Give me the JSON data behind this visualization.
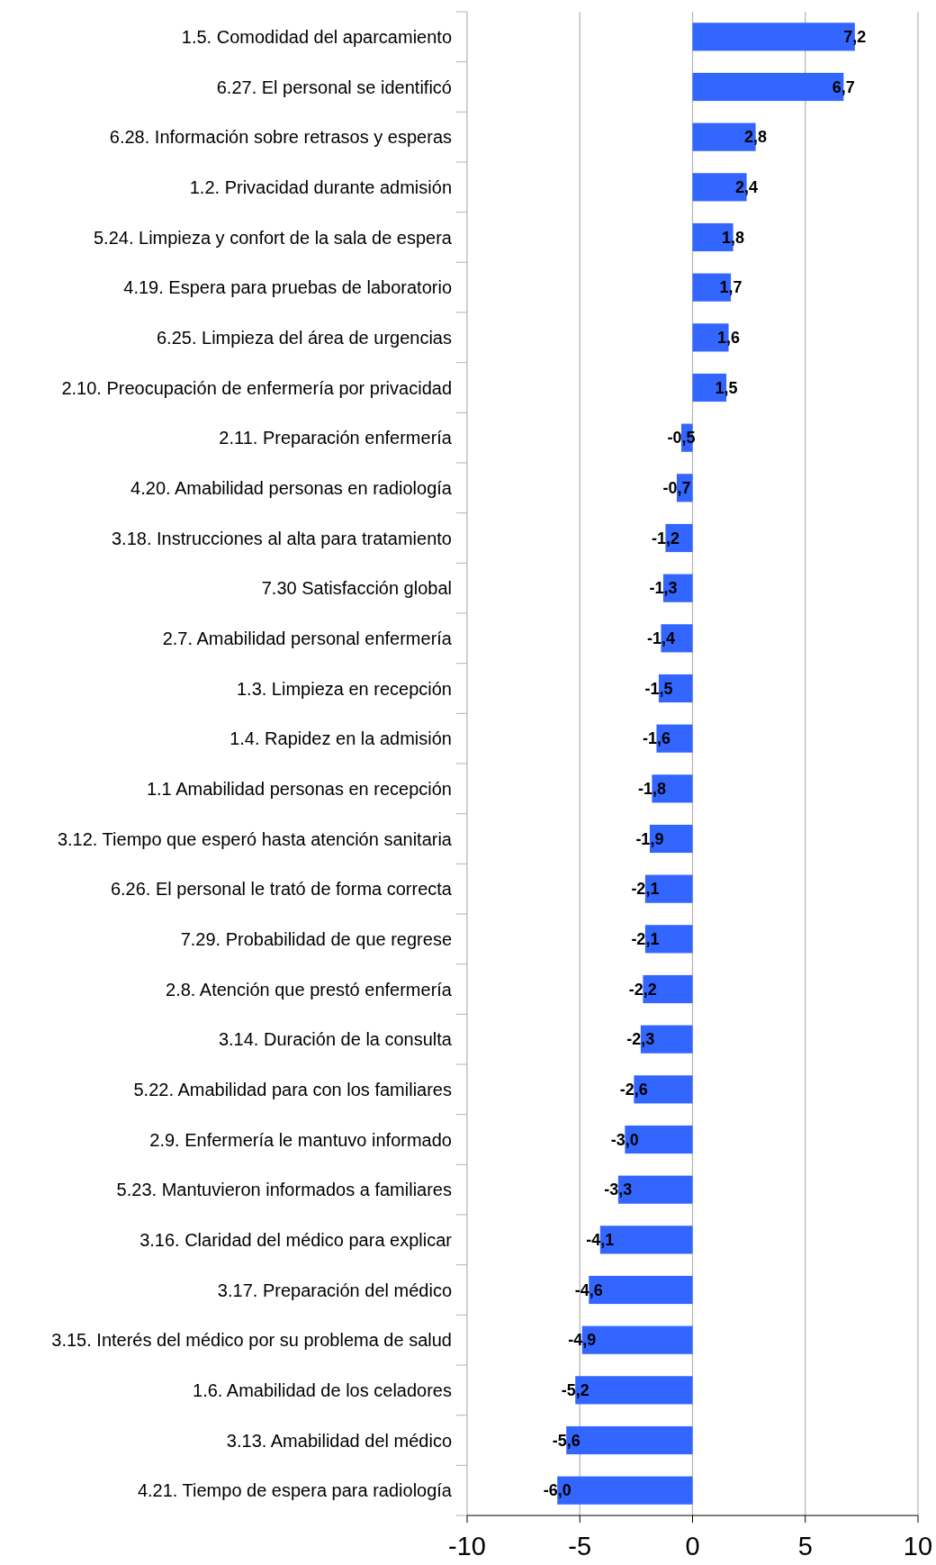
{
  "chart_data": {
    "type": "bar",
    "orientation": "horizontal",
    "categories": [
      "1.5. Comodidad del aparcamiento",
      "6.27. El personal se identificó",
      "6.28. Información sobre retrasos y esperas",
      "1.2. Privacidad durante admisión",
      "5.24. Limpieza y confort de la sala de espera",
      "4.19. Espera para pruebas de laboratorio",
      "6.25. Limpieza del área de urgencias",
      "2.10. Preocupación de enfermería por privacidad",
      "2.11. Preparación enfermería",
      "4.20. Amabilidad personas en radiología",
      "3.18. Instrucciones al alta para tratamiento",
      "7.30 Satisfacción global",
      "2.7. Amabilidad personal enfermería",
      "1.3. Limpieza en recepción",
      "1.4. Rapidez en la admisión",
      "1.1 Amabilidad personas en recepción",
      "3.12. Tiempo que esperó hasta atención sanitaria",
      "6.26. El personal le trató de forma correcta",
      "7.29. Probabilidad de que regrese",
      "2.8. Atención que prestó enfermería",
      "3.14. Duración de la consulta",
      "5.22. Amabilidad para con los familiares",
      "2.9. Enfermería le mantuvo informado",
      "5.23. Mantuvieron informados a familiares",
      "3.16. Claridad del médico para explicar",
      "3.17. Preparación del médico",
      "3.15. Interés del médico por su problema de salud",
      "1.6. Amabilidad de los celadores",
      "3.13. Amabilidad del médico",
      "4.21. Tiempo de espera para radiología"
    ],
    "values": [
      7.2,
      6.7,
      2.8,
      2.4,
      1.8,
      1.7,
      1.6,
      1.5,
      -0.5,
      -0.7,
      -1.2,
      -1.3,
      -1.4,
      -1.5,
      -1.6,
      -1.8,
      -1.9,
      -2.1,
      -2.1,
      -2.2,
      -2.3,
      -2.6,
      -3.0,
      -3.3,
      -4.1,
      -4.6,
      -4.9,
      -5.2,
      -5.6,
      -6.0
    ],
    "value_labels": [
      "7,2",
      "6,7",
      "2,8",
      "2,4",
      "1,8",
      "1,7",
      "1,6",
      "1,5",
      "-0,5",
      "-0,7",
      "-1,2",
      "-1,3",
      "-1,4",
      "-1,5",
      "-1,6",
      "-1,8",
      "-1,9",
      "-2,1",
      "-2,1",
      "-2,2",
      "-2,3",
      "-2,6",
      "-3,0",
      "-3,3",
      "-4,1",
      "-4,6",
      "-4,9",
      "-5,2",
      "-5,6",
      "-6,0"
    ],
    "color": "#3366ff",
    "xlim": [
      -10,
      10
    ],
    "xticks": [
      -10,
      -5,
      0,
      5,
      10
    ],
    "grid": "x"
  }
}
